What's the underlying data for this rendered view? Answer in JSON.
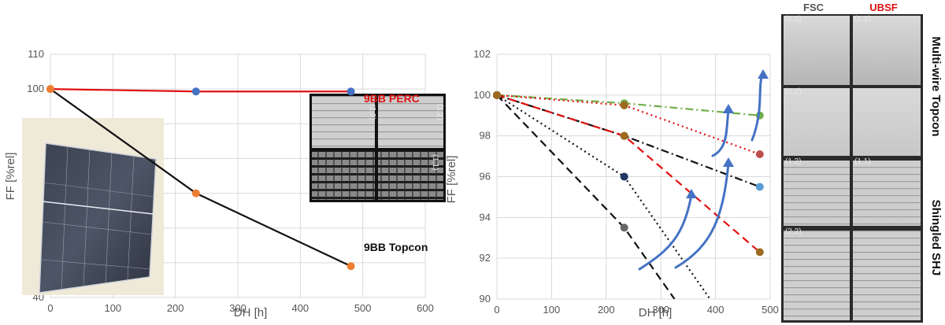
{
  "chart_data": [
    {
      "type": "line",
      "xlabel": "DH [h]",
      "ylabel": "FF [%rel]",
      "xlim": [
        0,
        600
      ],
      "ylim": [
        40,
        110
      ],
      "xticks": [
        "0",
        "100",
        "200",
        "300",
        "400",
        "500",
        "600"
      ],
      "yticks": [
        "40",
        "50",
        "60",
        "70",
        "80",
        "90",
        "100",
        "110"
      ],
      "grid": true,
      "series": [
        {
          "name": "9BB PERC",
          "x": [
            0,
            233,
            481
          ],
          "y": [
            100,
            99.3,
            99.3
          ],
          "color": "#e01010",
          "marker_colors": [
            "#ed7d31",
            "#4472c4",
            "#4472c4"
          ]
        },
        {
          "name": "9BB Topcon",
          "x": [
            0,
            233,
            481
          ],
          "y": [
            100,
            70,
            49
          ],
          "color": "#111111",
          "marker_colors": [
            "#ed7d31",
            "#ed7d31",
            "#ed7d31"
          ]
        }
      ],
      "annotations": {
        "perc": "9BB PERC",
        "topcon": "9BB Topcon"
      },
      "inset_labels": [
        "(2,2)",
        "(1,2)",
        "(1,1)"
      ]
    },
    {
      "type": "line",
      "xlabel": "DH [h]",
      "ylabel": "FF [%rel]",
      "xlim": [
        0,
        500
      ],
      "ylim": [
        90,
        102
      ],
      "xticks": [
        "0",
        "100",
        "200",
        "300",
        "400",
        "500"
      ],
      "yticks": [
        "90",
        "92",
        "94",
        "96",
        "98",
        "100",
        "102"
      ],
      "grid": true,
      "series": [
        {
          "x": [
            0,
            233,
            481
          ],
          "y": [
            100,
            99.6,
            99.0
          ],
          "color": "#70ad47",
          "dash": "dashdot",
          "marker": "#70ad47"
        },
        {
          "x": [
            0,
            233,
            481
          ],
          "y": [
            100,
            99.5,
            97.1
          ],
          "color": "#e01010",
          "dash": "dotted",
          "marker": "#c0504d"
        },
        {
          "x": [
            0,
            233,
            481
          ],
          "y": [
            100,
            98.0,
            95.5
          ],
          "color": "#111111",
          "dash": "dashdot",
          "marker": "#5b9bd5"
        },
        {
          "x": [
            0,
            233,
            481
          ],
          "y": [
            100,
            98.0,
            92.3
          ],
          "color": "#e01010",
          "dash": "dashed",
          "marker": "#9c6b1f"
        },
        {
          "x": [
            0,
            233,
            390
          ],
          "y": [
            100,
            96.0,
            90.0
          ],
          "color": "#111111",
          "dash": "dotted",
          "marker": "#1f3864"
        },
        {
          "x": [
            0,
            233,
            325
          ],
          "y": [
            100,
            93.5,
            90.0
          ],
          "color": "#111111",
          "dash": "dashed",
          "marker": "#666666"
        }
      ],
      "marker_overrides": [
        {
          "x": 233,
          "y": 99.5,
          "color": "#9c6b1f"
        },
        {
          "x": 233,
          "y": 98.0,
          "color": "#9c6b1f"
        },
        {
          "x": 0,
          "y": 100,
          "color": "#9c6b1f"
        }
      ]
    }
  ],
  "el_panel": {
    "col_headers": [
      "FSC",
      "UBSF"
    ],
    "col_colors": [
      "#555555",
      "#e01010"
    ],
    "row_labels": [
      "Multi-wire Topcon",
      "Shingled SHJ"
    ],
    "cell_labels": [
      "(1,2)",
      "(1,1)",
      "(2,2)",
      "(1,2)",
      "(1,1)",
      "(2,2)"
    ]
  }
}
